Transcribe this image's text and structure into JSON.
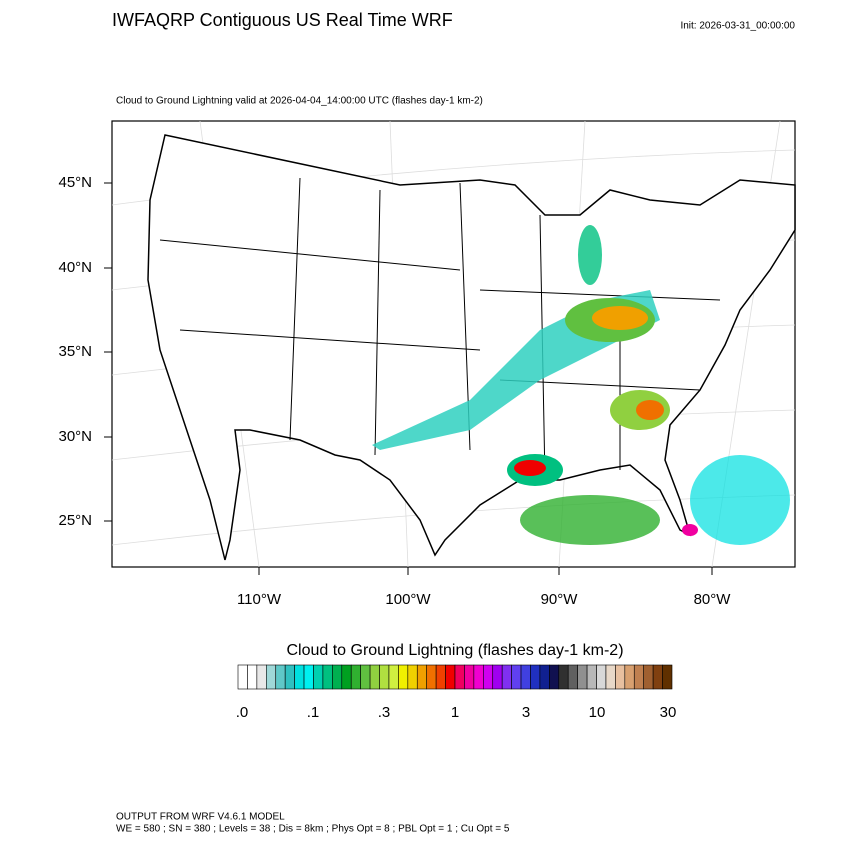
{
  "header": {
    "title": "IWFAQRP Contiguous US Real Time WRF",
    "init": "Init: 2026-03-31_00:00:00"
  },
  "map": {
    "subtitle": "Cloud to Ground Lightning valid at 2026-04-04_14:00:00 UTC   (flashes day-1 km-2)",
    "lat_labels": [
      "45°N",
      "40°N",
      "35°N",
      "30°N",
      "25°N"
    ],
    "lon_labels": [
      "110°W",
      "100°W",
      "90°W",
      "80°W"
    ]
  },
  "colorbar": {
    "title": "Cloud to Ground Lightning  (flashes day-1 km-2)",
    "labels": [
      ".0",
      ".1",
      ".3",
      "1",
      "3",
      "10",
      "30"
    ],
    "colors": [
      "#ffffff",
      "#ffffff",
      "#e8e8e8",
      "#9fd8d8",
      "#5fc8c8",
      "#2fc0c0",
      "#00e0e0",
      "#00f0f0",
      "#00d0b0",
      "#00c080",
      "#00b050",
      "#00a020",
      "#30b030",
      "#60c040",
      "#90d040",
      "#b0e040",
      "#d0f040",
      "#f0f000",
      "#f0d000",
      "#f0a000",
      "#f07000",
      "#f04000",
      "#f00000",
      "#f00060",
      "#f000a0",
      "#f000d0",
      "#d000f0",
      "#a000f0",
      "#8030f0",
      "#6040f0",
      "#4040e0",
      "#2030c0",
      "#102090",
      "#101050",
      "#303030",
      "#606060",
      "#909090",
      "#b8b8b8",
      "#d8d8d8",
      "#e8d8c8",
      "#e8c0a0",
      "#d8a070",
      "#c08050",
      "#a06030",
      "#804010",
      "#603000"
    ]
  },
  "footer": {
    "line1": "OUTPUT FROM WRF V4.6.1 MODEL",
    "line2": "WE = 580 ; SN = 380 ; Levels = 38 ; Dis = 8km ; Phys Opt = 8 ; PBL Opt = 1 ; Cu Opt = 5"
  }
}
